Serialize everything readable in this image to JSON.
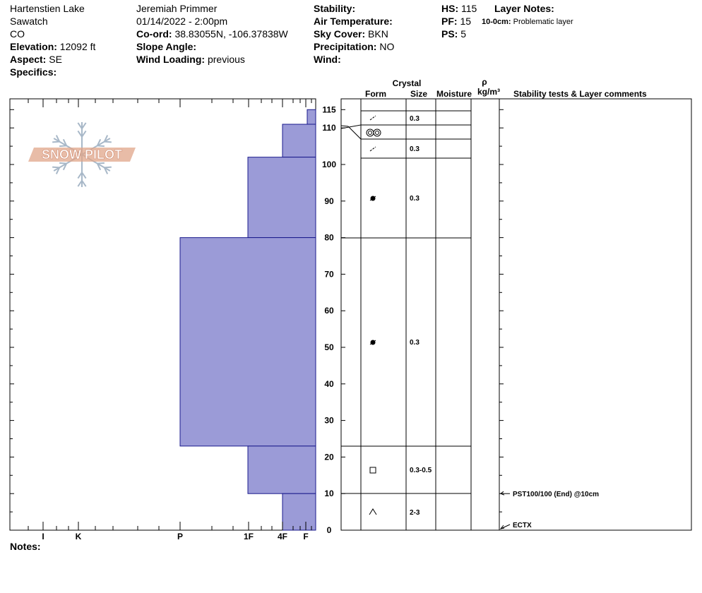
{
  "header": {
    "location": "Hartenstien Lake",
    "range": "Sawatch",
    "state": "CO",
    "elevation_label": "Elevation:",
    "elevation_value": "12092 ft",
    "aspect_label": "Aspect:",
    "aspect_value": "SE",
    "specifics_label": "Specifics:",
    "observer": "Jeremiah Primmer",
    "datetime": "01/14/2022 - 2:00pm",
    "coord_label": "Co-ord:",
    "coord_value": "38.83055N, -106.37838W",
    "slope_label": "Slope Angle:",
    "wind_loading_label": "Wind Loading:",
    "wind_loading_value": "previous",
    "stability_label": "Stability:",
    "air_temp_label": "Air Temperature:",
    "sky_label": "Sky Cover:",
    "sky_value": "BKN",
    "precip_label": "Precipitation:",
    "precip_value": "NO",
    "wind_label": "Wind:",
    "hs_label": "HS:",
    "hs_value": "115",
    "pf_label": "PF:",
    "pf_value": "15",
    "ps_label": "PS:",
    "ps_value": "5",
    "layer_notes_label": "Layer Notes:",
    "layer_note_depth": "10-0cm:",
    "layer_note_text": "Problematic layer",
    "notes_label": "Notes:"
  },
  "logo_text": "SNOW PILOT",
  "columns": {
    "crystal": "Crystal",
    "form": "Form",
    "size": "Size",
    "moisture": "Moisture",
    "rho": "ρ",
    "density_unit": "kg/m³",
    "stability": "Stability tests & Layer comments"
  },
  "colors": {
    "fill": "#9b9bd7",
    "stroke": "#1a1a8c",
    "logo": "#e0a58a",
    "snowflake": "#a8b8c8"
  },
  "chart_data": {
    "type": "snow-profile",
    "hs": 115,
    "y_range": [
      0,
      115
    ],
    "y_ticks": [
      "0",
      "10",
      "20",
      "30",
      "40",
      "50",
      "60",
      "70",
      "80",
      "90",
      "100",
      "110",
      "115"
    ],
    "hardness_scale": [
      "F",
      "4F",
      "1F",
      "P",
      "K",
      "I"
    ],
    "hardness_ticks": [
      "I",
      "K",
      "P",
      "1F",
      "4F",
      "F"
    ],
    "layers": [
      {
        "top": 115,
        "bottom": 111,
        "hardness": "F+",
        "form": "decomposing",
        "size": "0.3"
      },
      {
        "top": 111,
        "bottom": 102,
        "hardness": "4F",
        "form": "surface-hoar",
        "size": "",
        "form2": "decomposing",
        "size2": "0.3"
      },
      {
        "top": 102,
        "bottom": 80,
        "hardness": "1F",
        "form": "rounded",
        "size": "0.3"
      },
      {
        "top": 80,
        "bottom": 23,
        "hardness": "P",
        "form": "rounded",
        "size": "0.3"
      },
      {
        "top": 23,
        "bottom": 10,
        "hardness": "1F",
        "form": "faceted",
        "size": "0.3-0.5"
      },
      {
        "top": 10,
        "bottom": 0,
        "hardness": "4F",
        "form": "depth-hoar",
        "size": "2-3"
      }
    ],
    "tests": [
      {
        "depth": 10,
        "text": "PST100/100 (End) @10cm"
      },
      {
        "depth": 0,
        "text": "ECTX"
      }
    ]
  }
}
